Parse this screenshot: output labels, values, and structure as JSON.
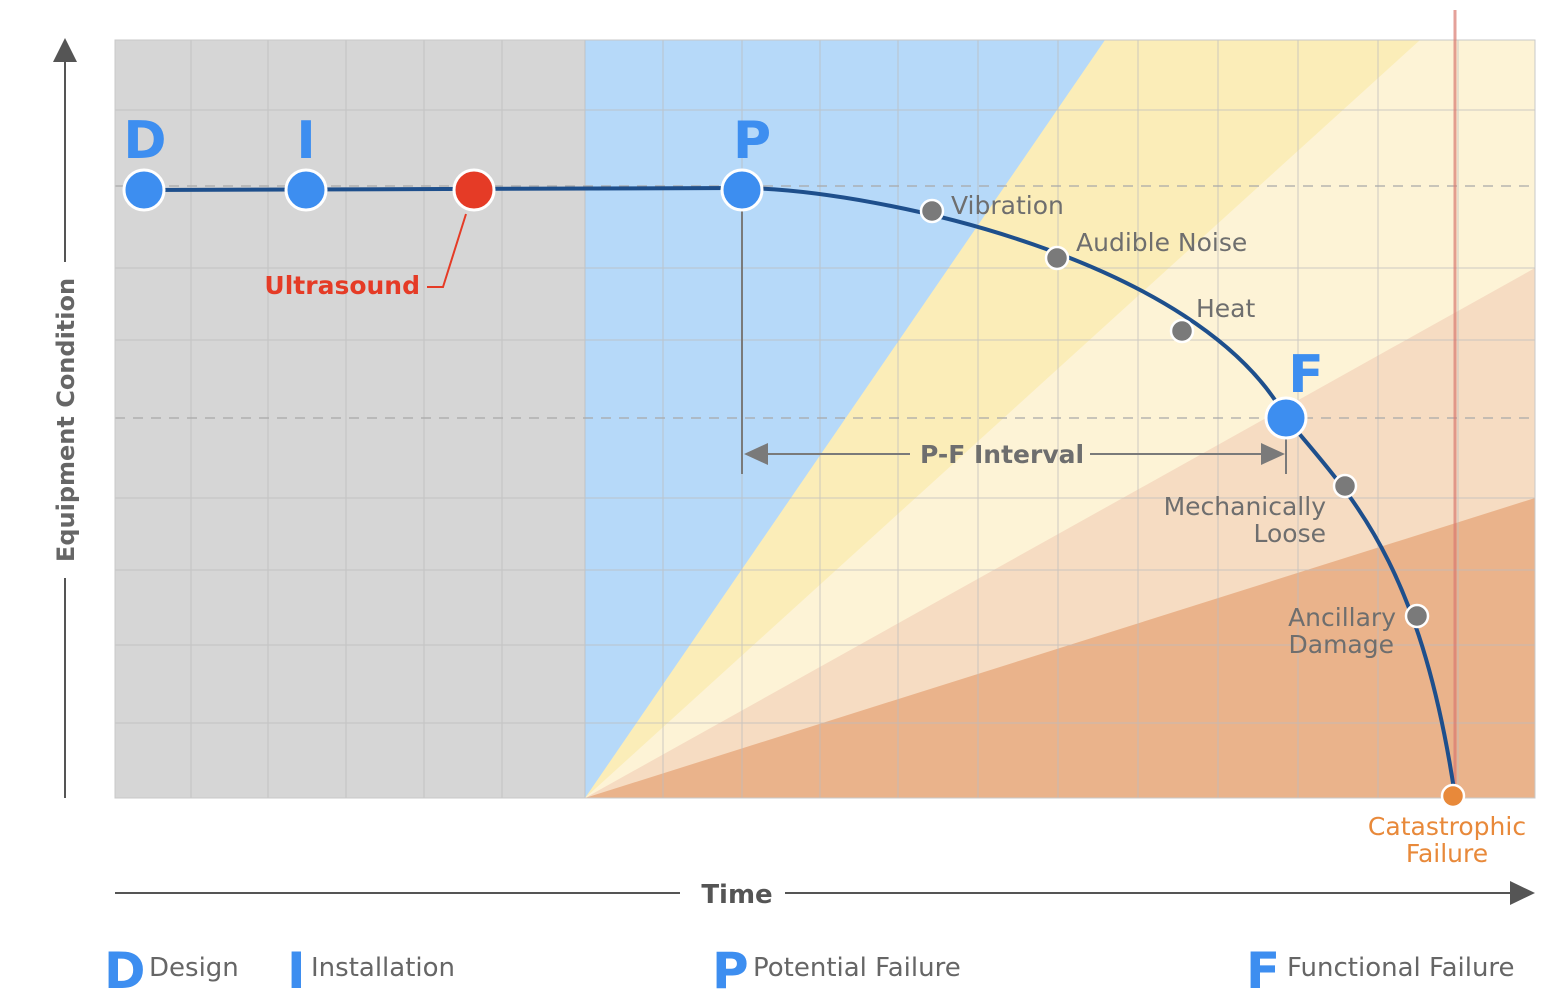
{
  "axes": {
    "y_label": "Equipment Condition",
    "x_label": "Time"
  },
  "markers": {
    "d": "D",
    "i": "I",
    "p": "P",
    "f": "F"
  },
  "ultrasound": "Ultrasound",
  "pf_interval": "P-F Interval",
  "indicators": {
    "vibration": "Vibration",
    "audible_noise": "Audible Noise",
    "heat": "Heat",
    "mech_line1": "Mechanically",
    "mech_line2": "Loose",
    "anc_line1": "Ancillary",
    "anc_line2": "Damage"
  },
  "catastrophic": {
    "line1": "Catastrophic",
    "line2": "Failure"
  },
  "legend": [
    {
      "letter": "D",
      "label": "Design"
    },
    {
      "letter": "I",
      "label": "Installation"
    },
    {
      "letter": "P",
      "label": "Potential Failure"
    },
    {
      "letter": "F",
      "label": "Functional Failure"
    }
  ],
  "colors": {
    "marker_blue": "#3d8ef0",
    "ultrasound_red": "#e53b26",
    "curve": "#1e4f8c",
    "indicator_gray": "#7a7a7a",
    "catastrophic_orange": "#e8893a",
    "gray_zone": "#d6d6d6",
    "blue_zone": "#b6d9f9",
    "yellow_zone": "#fbedb8",
    "light_yellow_zone": "#fdf3d6",
    "peach_zone": "#f6dcc2",
    "orange_zone": "#eab38b"
  }
}
